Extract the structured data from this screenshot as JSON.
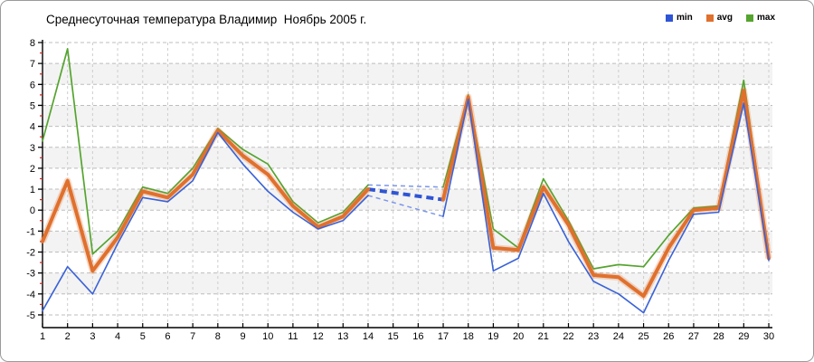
{
  "title": "Среднесуточная температура Владимир  Ноябрь 2005 г.",
  "legend": [
    {
      "label": "min",
      "color": "#2f55d4"
    },
    {
      "label": "avg",
      "color": "#e0702d"
    },
    {
      "label": "max",
      "color": "#55a42e"
    }
  ],
  "chart_data": {
    "type": "line",
    "title": "Среднесуточная температура Владимир  Ноябрь 2005 г.",
    "xlabel": "",
    "ylabel": "",
    "x_ticks": [
      1,
      2,
      3,
      4,
      5,
      6,
      7,
      8,
      9,
      10,
      11,
      12,
      13,
      14,
      15,
      16,
      17,
      18,
      19,
      20,
      21,
      22,
      23,
      24,
      25,
      26,
      27,
      28,
      29,
      30
    ],
    "y_ticks": [
      8,
      7,
      6,
      5,
      4,
      3,
      2,
      1,
      0,
      -1,
      -2,
      -3,
      -4,
      -5
    ],
    "xlim": [
      1,
      30
    ],
    "ylim": [
      -5,
      8
    ],
    "grid": "dashed",
    "legend_position": "top-right",
    "plot_bands_between": [
      7,
      5,
      3,
      1,
      -1,
      -3
    ],
    "band_color": "#f3f3f3",
    "grid_color_h": "#bdbdbd",
    "grid_color_v": "#cdcdcd",
    "axis_color": "#000000",
    "minor_tick_color": "#cc2222",
    "series": [
      {
        "name": "min",
        "color": "#3a62d8",
        "width": 1.6,
        "values": [
          -4.8,
          -2.7,
          -4.0,
          -1.6,
          0.6,
          0.4,
          1.4,
          3.7,
          2.2,
          0.9,
          -0.1,
          -0.9,
          -0.5,
          0.7,
          null,
          null,
          -0.3,
          5.3,
          -2.9,
          -2.3,
          0.8,
          -1.5,
          -3.4,
          -4.0,
          -4.9,
          -2.4,
          -0.2,
          -0.1,
          5.1,
          -2.4
        ]
      },
      {
        "name": "avg",
        "color": "#e0702d",
        "width": 4,
        "halo": true,
        "values": [
          -1.5,
          1.4,
          -2.9,
          -1.3,
          0.9,
          0.6,
          1.7,
          3.8,
          2.6,
          1.7,
          0.2,
          -0.8,
          -0.3,
          1.0,
          null,
          null,
          0.5,
          5.4,
          -1.8,
          -1.9,
          1.1,
          -0.7,
          -3.1,
          -3.2,
          -4.1,
          -1.8,
          0.0,
          0.1,
          5.7,
          -2.3
        ]
      },
      {
        "name": "max",
        "color": "#55a42e",
        "width": 1.7,
        "values": [
          3.3,
          7.7,
          -2.1,
          -1.0,
          1.1,
          0.8,
          2.0,
          3.9,
          2.9,
          2.2,
          0.4,
          -0.6,
          -0.1,
          1.2,
          null,
          null,
          1.1,
          5.5,
          -0.9,
          -1.8,
          1.5,
          -0.5,
          -2.8,
          -2.6,
          -2.7,
          -1.2,
          0.1,
          0.2,
          6.2,
          -2.2
        ]
      }
    ],
    "missing_data": {
      "days": [
        15,
        16
      ],
      "bridge_from_day": 14,
      "bridge_to_day": 17,
      "bridge_style": "dashed-blue",
      "thin_color": "#7b96ea",
      "thick_color": "#2f55d4"
    }
  }
}
